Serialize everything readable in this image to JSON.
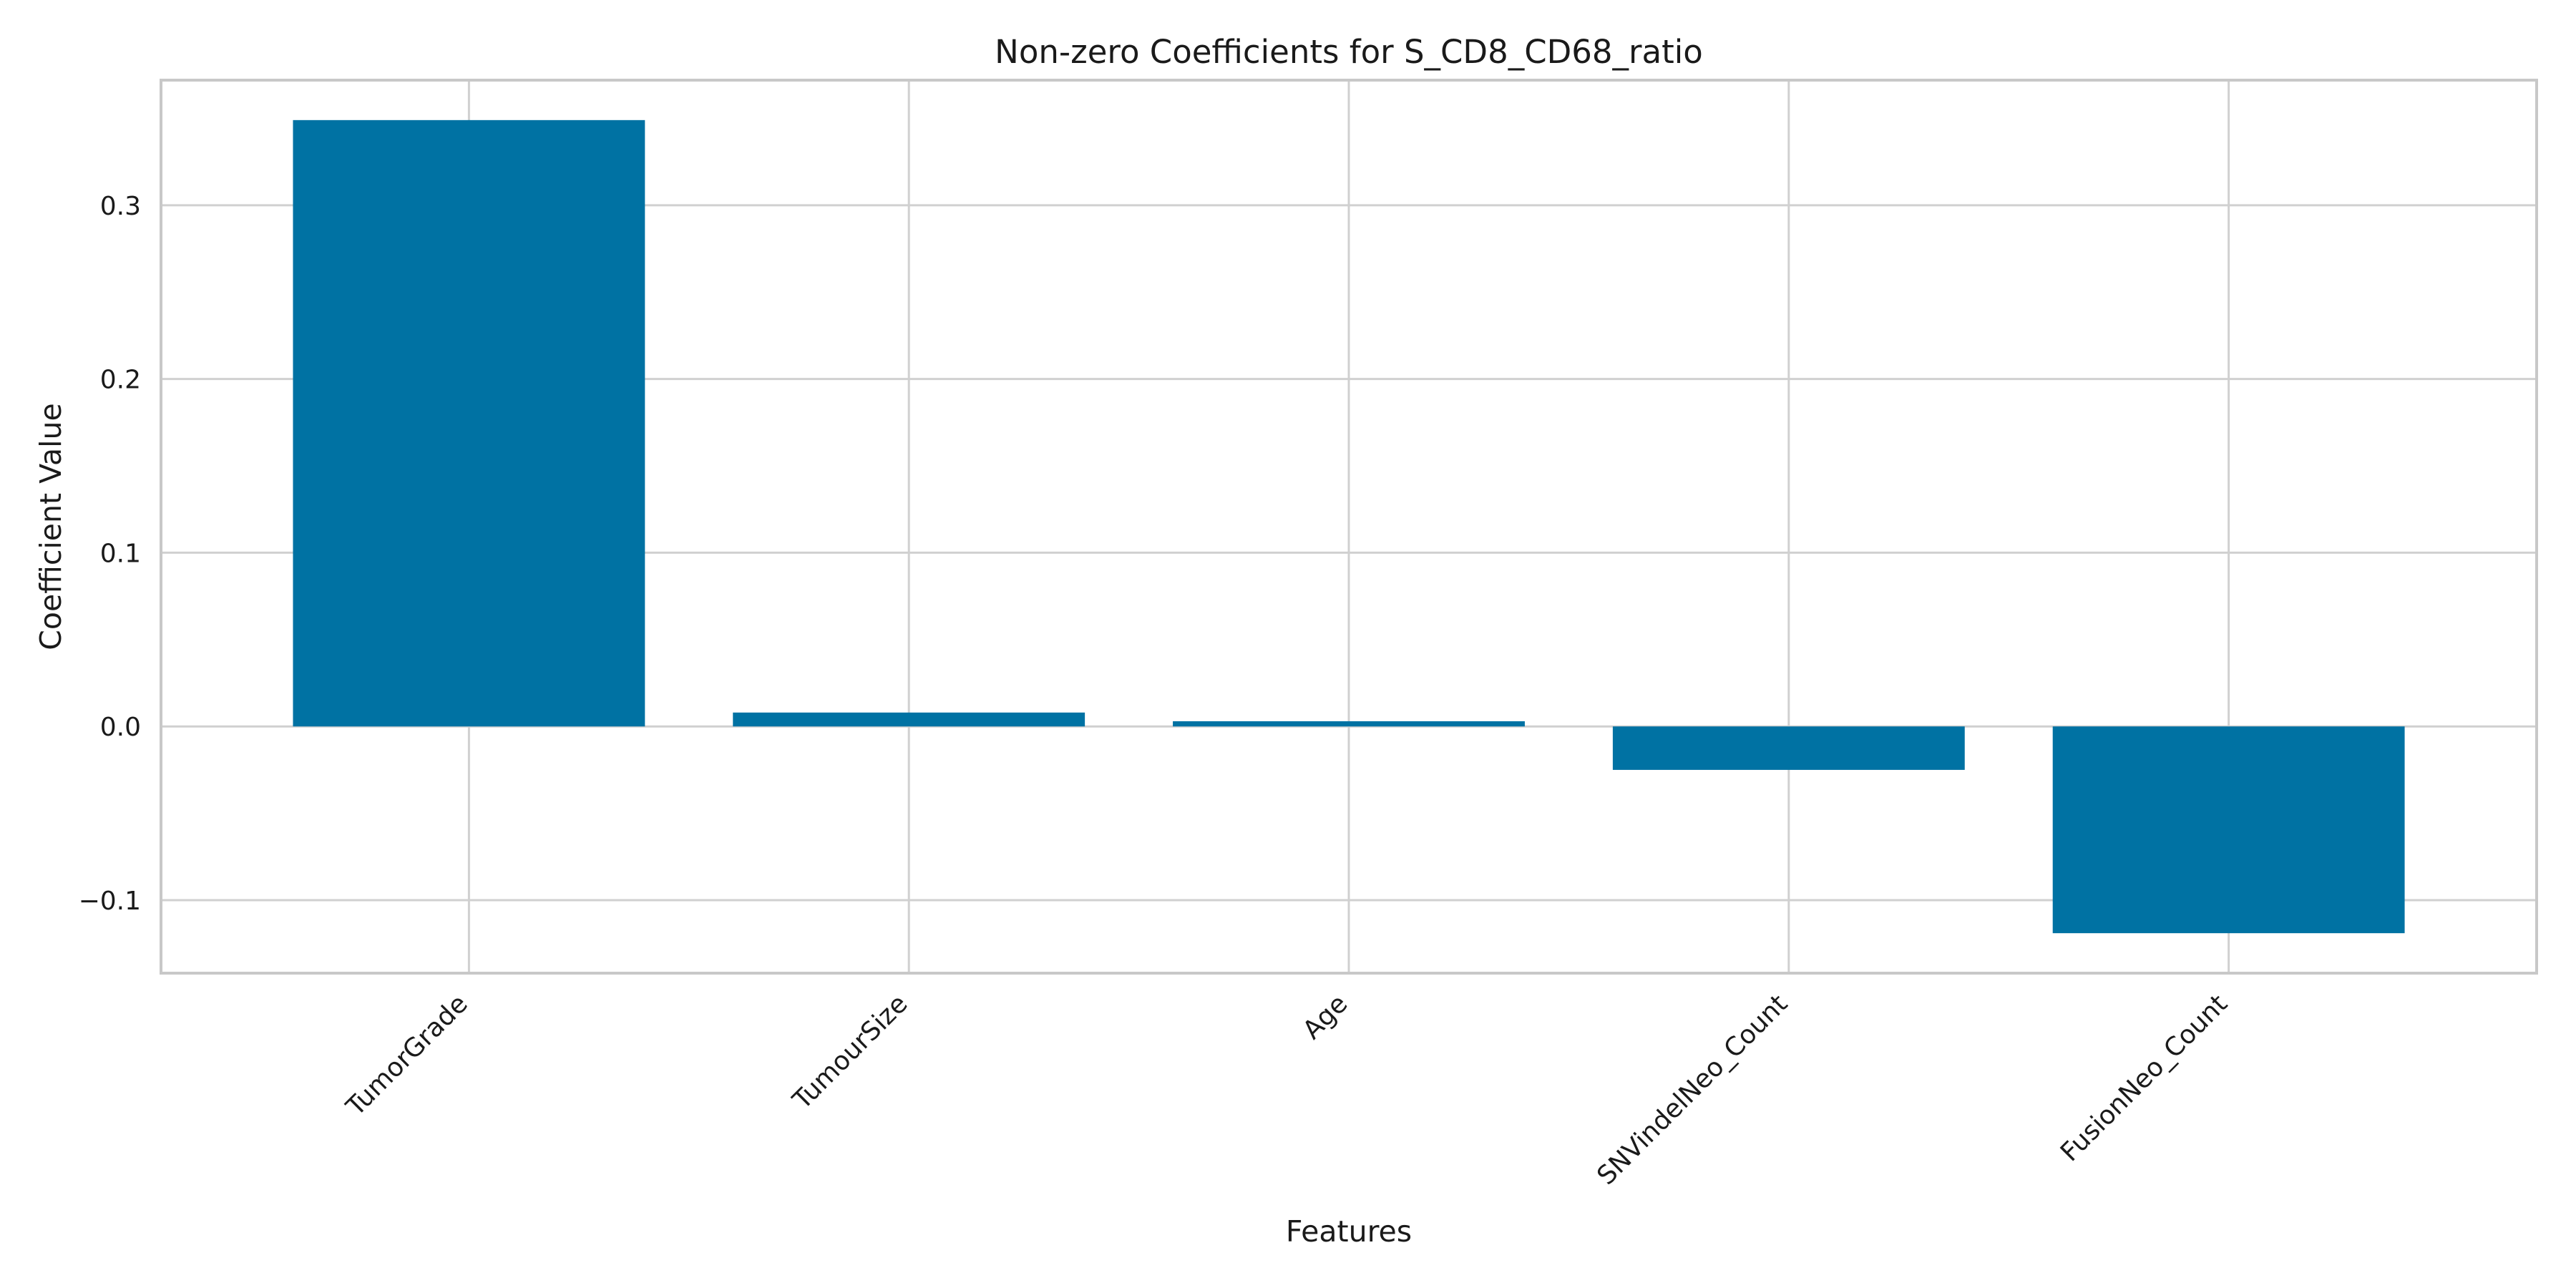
{
  "chart_data": {
    "type": "bar",
    "title": "Non-zero Coefficients for S_CD8_CD68_ratio",
    "xlabel": "Features",
    "ylabel": "Coefficient Value",
    "categories": [
      "TumorGrade",
      "TumourSize",
      "Age",
      "SNVindelNeo_Count",
      "FusionNeo_Count"
    ],
    "values": [
      0.349,
      0.008,
      0.003,
      -0.025,
      -0.119
    ],
    "ylim": [
      -0.142,
      0.372
    ],
    "yticks": [
      -0.1,
      0.0,
      0.1,
      0.2,
      0.3
    ],
    "ytick_labels": [
      "−0.1",
      "0.0",
      "0.1",
      "0.2",
      "0.3"
    ],
    "grid": true,
    "bar_color": "#0072a3"
  }
}
